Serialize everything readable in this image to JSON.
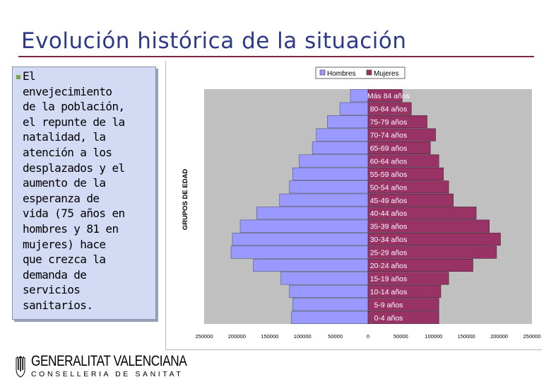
{
  "slide": {
    "title": "Evolución histórica de la situación",
    "body_text": "El\nenvejecimiento\nde la población,\nel repunte de la\nnatalidad, la\natención a los\ndesplazados y el\naumento de la\nesperanza de\nvida (75 años en\nhombres y 81 en\nmujeres) hace\nque crezca la\ndemanda de\nservicios\nsanitarios.",
    "logo_line1": "GENERALITAT VALENCIANA",
    "logo_line2": "CONSELLERIA DE SANITAT"
  },
  "colors": {
    "hombres": "#9999ff",
    "mujeres": "#993366",
    "plot_bg": "#c0c0c0",
    "title": "#2e3a87"
  },
  "chart_data": {
    "type": "bar",
    "orientation": "horizontal-pyramid",
    "categories": [
      "Más 84 años",
      "80-84 años",
      "75-79 años",
      "70-74 años",
      "65-69 años",
      "60-64 años",
      "55-59 años",
      "50-54 años",
      "45-49 años",
      "40-44 años",
      "35-39 años",
      "30-34 años",
      "25-29 años",
      "20-24 años",
      "15-19 años",
      "10-14 años",
      "5-9 años",
      "0-4 años"
    ],
    "series": [
      {
        "name": "Hombres",
        "values": [
          27000,
          43000,
          62000,
          79000,
          85000,
          105000,
          115000,
          120000,
          135000,
          170000,
          195000,
          207000,
          209000,
          175000,
          133000,
          120000,
          115000,
          117000
        ]
      },
      {
        "name": "Mujeres",
        "values": [
          52000,
          66000,
          90000,
          103000,
          95000,
          108000,
          115000,
          123000,
          130000,
          165000,
          185000,
          202000,
          196000,
          160000,
          123000,
          111000,
          108000,
          108000
        ]
      }
    ],
    "ylabel": "GRUPOS DE EDAD",
    "xlabel": "",
    "xlim": [
      -250000,
      250000
    ],
    "x_ticks": [
      "250000",
      "200000",
      "150000",
      "100000",
      "50000",
      "0",
      "50000",
      "100000",
      "150000",
      "200000",
      "250000"
    ],
    "legend_position": "top",
    "grid": false
  }
}
